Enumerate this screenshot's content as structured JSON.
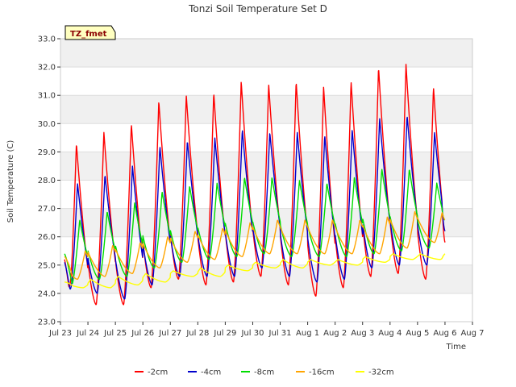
{
  "chart_data": {
    "type": "line",
    "title": "Tonzi Soil Temperature Set D",
    "xlabel": "Time",
    "ylabel": "Soil Temperature (C)",
    "site_label": "TZ_fmet",
    "ylim": [
      23.0,
      33.0
    ],
    "xlim": [
      "Jul 23",
      "Aug 7"
    ],
    "yticks": [
      "23.0",
      "24.0",
      "25.0",
      "26.0",
      "27.0",
      "28.0",
      "29.0",
      "30.0",
      "31.0",
      "32.0",
      "33.0"
    ],
    "xticks": [
      "Jul 23",
      "Jul 24",
      "Jul 25",
      "Jul 26",
      "Jul 27",
      "Jul 28",
      "Jul 29",
      "Jul 30",
      "Jul 31",
      "Aug 1",
      "Aug 2",
      "Aug 3",
      "Aug 4",
      "Aug 5",
      "Aug 6",
      "Aug 7"
    ],
    "grid": "horizontal bands",
    "legend_position": "bottom",
    "x_unit": "days since Jul 23 (tick index)",
    "daily_pattern": "one minimum and one maximum per day; peaks near 0.55 of the day for -2cm, later for deeper sensors",
    "series": [
      {
        "name": "-2cm",
        "color": "#ff0000",
        "daily_min": [
          23.4,
          23.6,
          23.6,
          24.2,
          24.5,
          24.3,
          24.4,
          24.6,
          24.3,
          23.9,
          24.2,
          24.6,
          24.7,
          24.5
        ],
        "daily_max": [
          29.3,
          29.7,
          30.0,
          30.8,
          31.0,
          31.1,
          31.5,
          31.4,
          31.5,
          31.3,
          31.5,
          32.0,
          32.1,
          31.3
        ],
        "start": 25.2,
        "end": 25.8,
        "peak_phase": 0.58
      },
      {
        "name": "-4cm",
        "color": "#0000cc",
        "daily_min": [
          23.7,
          24.0,
          23.8,
          24.3,
          24.6,
          24.6,
          24.6,
          24.9,
          24.6,
          24.4,
          24.5,
          24.9,
          25.0,
          25.0
        ],
        "daily_max": [
          27.9,
          28.2,
          28.5,
          29.2,
          29.4,
          29.5,
          29.8,
          29.7,
          29.7,
          29.6,
          29.8,
          30.2,
          30.3,
          29.7
        ],
        "start": 25.1,
        "end": 26.2,
        "peak_phase": 0.62
      },
      {
        "name": "-8cm",
        "color": "#00dd00",
        "daily_min": [
          24.3,
          24.5,
          24.6,
          24.9,
          25.1,
          25.2,
          25.3,
          25.4,
          25.3,
          25.3,
          25.3,
          25.4,
          25.5,
          25.6
        ],
        "daily_max": [
          26.6,
          26.9,
          27.2,
          27.6,
          27.8,
          27.9,
          28.1,
          28.1,
          28.0,
          27.9,
          28.1,
          28.4,
          28.4,
          27.9
        ],
        "start": 25.4,
        "end": 26.6,
        "peak_phase": 0.7
      },
      {
        "name": "-16cm",
        "color": "#ffa500",
        "daily_min": [
          24.5,
          24.6,
          24.7,
          24.9,
          25.1,
          25.2,
          25.3,
          25.4,
          25.4,
          25.4,
          25.4,
          25.4,
          25.6,
          25.8
        ],
        "daily_max": [
          25.5,
          25.7,
          25.8,
          26.0,
          26.2,
          26.3,
          26.5,
          26.6,
          26.6,
          26.6,
          26.6,
          26.7,
          26.9,
          26.9
        ],
        "start": 25.3,
        "end": 26.6,
        "peak_phase": 0.9
      },
      {
        "name": "-32cm",
        "color": "#ffff00",
        "daily_min": [
          24.2,
          24.2,
          24.3,
          24.4,
          24.6,
          24.6,
          24.8,
          24.9,
          24.9,
          25.0,
          25.0,
          25.1,
          25.2,
          25.2
        ],
        "daily_max": [
          24.4,
          24.5,
          24.6,
          24.7,
          24.8,
          24.9,
          25.0,
          25.1,
          25.2,
          25.2,
          25.2,
          25.3,
          25.4,
          25.4
        ],
        "start": 24.4,
        "end": 25.4,
        "peak_phase": 0.1
      }
    ]
  }
}
